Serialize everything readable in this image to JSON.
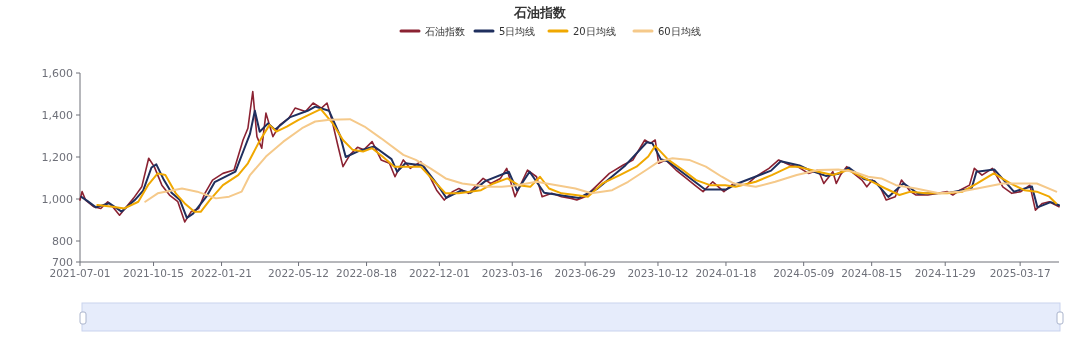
{
  "chart_data": {
    "type": "line",
    "title": "石油指数",
    "legend": "top",
    "grid": false,
    "marker": "none",
    "line_style": "solid",
    "xlim": [
      "2021-07-01",
      "2025-05-12"
    ],
    "xticks": [
      {
        "value": "2021-07-01",
        "label": "2021-07-01"
      },
      {
        "value": "2021-10-15",
        "label": "2021-10-15"
      },
      {
        "value": "2022-01-21",
        "label": "2022-01-21"
      },
      {
        "value": "2022-05-12",
        "label": "2022-05-12"
      },
      {
        "value": "2022-08-18",
        "label": "2022-08-18"
      },
      {
        "value": "2022-12-01",
        "label": "2022-12-01"
      },
      {
        "value": "2023-03-16",
        "label": "2023-03-16"
      },
      {
        "value": "2023-06-29",
        "label": "2023-06-29"
      },
      {
        "value": "2023-10-12",
        "label": "2023-10-12"
      },
      {
        "value": "2024-01-18",
        "label": "2024-01-18"
      },
      {
        "value": "2024-05-09",
        "label": "2024-05-09"
      },
      {
        "value": "2024-08-15",
        "label": "2024-08-15"
      },
      {
        "value": "2024-11-29",
        "label": "2024-11-29"
      },
      {
        "value": "2025-03-17",
        "label": "2025-03-17"
      }
    ],
    "ylim": [
      700,
      1600
    ],
    "yticks": [
      700,
      800,
      {
        "value": 1000,
        "label": "1,000"
      },
      {
        "value": 1200,
        "label": "1,200"
      },
      {
        "value": 1400,
        "label": "1,400"
      },
      {
        "value": 1600,
        "label": "1,600"
      }
    ],
    "series": [
      {
        "name": "石油指数",
        "color": "#8b2232",
        "x": [
          "2021-07-01",
          "2021-07-04",
          "2021-07-09",
          "2021-07-21",
          "2021-07-31",
          "2021-08-10",
          "2021-08-17",
          "2021-08-27",
          "2021-09-06",
          "2021-09-16",
          "2021-09-28",
          "2021-10-08",
          "2021-10-16",
          "2021-10-27",
          "2021-11-07",
          "2021-11-19",
          "2021-11-29",
          "2021-12-08",
          "2021-12-19",
          "2021-12-28",
          "2022-01-08",
          "2022-01-23",
          "2022-02-08",
          "2022-02-21",
          "2022-02-28",
          "2022-03-07",
          "2022-03-13",
          "2022-03-20",
          "2022-03-26",
          "2022-04-05",
          "2022-04-15",
          "2022-04-28",
          "2022-05-07",
          "2022-05-22",
          "2022-06-02",
          "2022-06-14",
          "2022-06-22",
          "2022-06-29",
          "2022-07-08",
          "2022-07-15",
          "2022-07-25",
          "2022-08-05",
          "2022-08-14",
          "2022-08-26",
          "2022-09-08",
          "2022-09-20",
          "2022-09-28",
          "2022-10-10",
          "2022-10-20",
          "2022-11-04",
          "2022-11-16",
          "2022-11-27",
          "2022-12-08",
          "2022-12-20",
          "2022-12-29",
          "2023-01-12",
          "2023-02-02",
          "2023-02-13",
          "2023-02-27",
          "2023-03-08",
          "2023-03-20",
          "2023-04-07",
          "2023-04-20",
          "2023-04-28",
          "2023-05-12",
          "2023-05-26",
          "2023-06-09",
          "2023-06-17",
          "2023-06-29",
          "2023-07-14",
          "2023-08-03",
          "2023-08-23",
          "2023-09-06",
          "2023-09-23",
          "2023-10-01",
          "2023-10-08",
          "2023-10-13",
          "2023-10-23",
          "2023-11-07",
          "2023-11-22",
          "2023-12-04",
          "2023-12-16",
          "2023-12-30",
          "2024-01-15",
          "2024-01-29",
          "2024-02-16",
          "2024-03-01",
          "2024-03-20",
          "2024-04-03",
          "2024-04-19",
          "2024-04-30",
          "2024-05-16",
          "2024-05-30",
          "2024-06-07",
          "2024-06-20",
          "2024-06-25",
          "2024-07-01",
          "2024-07-10",
          "2024-07-20",
          "2024-08-01",
          "2024-08-08",
          "2024-08-16",
          "2024-08-26",
          "2024-09-05",
          "2024-09-18",
          "2024-09-27",
          "2024-10-10",
          "2024-10-18",
          "2024-11-04",
          "2024-12-02",
          "2024-12-10",
          "2024-12-20",
          "2025-01-03",
          "2025-01-10",
          "2025-01-21",
          "2025-02-05",
          "2025-02-20",
          "2025-03-05",
          "2025-03-18",
          "2025-03-31",
          "2025-04-08",
          "2025-04-18",
          "2025-04-28",
          "2025-05-12"
        ],
        "values": [
          995,
          1035,
          995,
          963,
          955,
          987,
          963,
          923,
          963,
          1003,
          1058,
          1194,
          1154,
          1066,
          1019,
          987,
          891,
          939,
          955,
          1027,
          1090,
          1122,
          1138,
          1281,
          1337,
          1512,
          1297,
          1242,
          1409,
          1297,
          1353,
          1385,
          1433,
          1417,
          1457,
          1433,
          1457,
          1377,
          1250,
          1154,
          1210,
          1246,
          1234,
          1273,
          1186,
          1170,
          1106,
          1186,
          1146,
          1178,
          1114,
          1042,
          995,
          1035,
          1050,
          1027,
          1098,
          1074,
          1098,
          1146,
          1011,
          1138,
          1106,
          1011,
          1027,
          1011,
          1003,
          995,
          1011,
          1058,
          1122,
          1162,
          1186,
          1281,
          1265,
          1281,
          1170,
          1186,
          1138,
          1098,
          1066,
          1035,
          1082,
          1035,
          1074,
          1066,
          1106,
          1146,
          1186,
          1162,
          1154,
          1122,
          1138,
          1074,
          1130,
          1074,
          1114,
          1154,
          1122,
          1090,
          1058,
          1090,
          1066,
          995,
          1011,
          1090,
          1035,
          1019,
          1019,
          1035,
          1019,
          1042,
          1066,
          1146,
          1114,
          1146,
          1058,
          1027,
          1035,
          1066,
          947,
          979,
          987,
          963
        ]
      },
      {
        "name": "5日均线",
        "color": "#1f2f5e",
        "x": [
          "2021-07-03",
          "2021-07-12",
          "2021-07-24",
          "2021-08-12",
          "2021-08-30",
          "2021-09-18",
          "2021-09-30",
          "2021-10-12",
          "2021-10-19",
          "2021-10-30",
          "2021-11-10",
          "2021-11-22",
          "2021-12-02",
          "2021-12-11",
          "2021-12-31",
          "2022-01-11",
          "2022-02-10",
          "2022-02-24",
          "2022-03-03",
          "2022-03-10",
          "2022-03-17",
          "2022-03-29",
          "2022-04-08",
          "2022-04-30",
          "2022-05-25",
          "2022-06-05",
          "2022-06-25",
          "2022-07-11",
          "2022-07-19",
          "2022-08-08",
          "2022-08-29",
          "2022-09-23",
          "2022-10-01",
          "2022-10-13",
          "2022-11-07",
          "2022-11-30",
          "2022-12-11",
          "2023-01-01",
          "2023-01-15",
          "2023-02-05",
          "2023-03-11",
          "2023-03-23",
          "2023-04-10",
          "2023-05-01",
          "2023-05-29",
          "2023-06-20",
          "2023-07-17",
          "2023-08-26",
          "2023-09-26",
          "2023-10-04",
          "2023-10-16",
          "2023-10-26",
          "2023-11-25",
          "2023-12-19",
          "2024-01-18",
          "2024-02-01",
          "2024-03-23",
          "2024-04-06",
          "2024-05-03",
          "2024-05-19",
          "2024-06-10",
          "2024-06-28",
          "2024-07-13",
          "2024-08-04",
          "2024-08-19",
          "2024-09-08",
          "2024-09-30",
          "2024-10-21",
          "2024-12-05",
          "2025-01-06",
          "2025-01-13",
          "2025-02-08",
          "2025-03-08",
          "2025-04-03",
          "2025-04-11",
          "2025-04-30",
          "2025-05-12"
        ],
        "values": [
          1010,
          990,
          960,
          980,
          940,
          995,
          1040,
          1150,
          1165,
          1090,
          1030,
          995,
          910,
          930,
          1015,
          1080,
          1130,
          1250,
          1310,
          1420,
          1320,
          1360,
          1330,
          1390,
          1420,
          1440,
          1420,
          1300,
          1200,
          1230,
          1250,
          1190,
          1130,
          1170,
          1160,
          1060,
          1005,
          1040,
          1030,
          1085,
          1130,
          1040,
          1130,
          1030,
          1015,
          1005,
          1050,
          1160,
          1270,
          1265,
          1190,
          1180,
          1105,
          1045,
          1045,
          1070,
          1135,
          1180,
          1160,
          1135,
          1110,
          1120,
          1150,
          1095,
          1085,
          1010,
          1075,
          1025,
          1030,
          1050,
          1130,
          1140,
          1035,
          1060,
          960,
          985,
          970
        ]
      },
      {
        "name": "20日均线",
        "color": "#f0a800",
        "x": [
          "2021-07-26",
          "2021-08-17",
          "2021-09-03",
          "2021-09-23",
          "2021-10-07",
          "2021-10-21",
          "2021-11-01",
          "2021-11-16",
          "2021-11-29",
          "2021-12-13",
          "2021-12-22",
          "2022-01-04",
          "2022-01-23",
          "2022-02-14",
          "2022-02-28",
          "2022-03-15",
          "2022-03-31",
          "2022-04-10",
          "2022-04-25",
          "2022-05-12",
          "2022-06-01",
          "2022-06-13",
          "2022-06-30",
          "2022-07-15",
          "2022-07-29",
          "2022-08-13",
          "2022-08-26",
          "2022-09-10",
          "2022-09-27",
          "2022-10-20",
          "2022-11-04",
          "2022-11-22",
          "2022-12-10",
          "2022-12-29",
          "2023-01-30",
          "2023-02-17",
          "2023-03-09",
          "2023-03-25",
          "2023-04-11",
          "2023-04-25",
          "2023-05-08",
          "2023-05-26",
          "2023-06-15",
          "2023-07-03",
          "2023-07-24",
          "2023-08-18",
          "2023-09-11",
          "2023-09-28",
          "2023-10-08",
          "2023-10-27",
          "2023-11-17",
          "2023-12-06",
          "2023-12-26",
          "2024-01-17",
          "2024-02-01",
          "2024-03-01",
          "2024-03-24",
          "2024-04-19",
          "2024-05-01",
          "2024-05-30",
          "2024-06-20",
          "2024-07-12",
          "2024-07-27",
          "2024-08-16",
          "2024-09-04",
          "2024-09-24",
          "2024-10-10",
          "2024-11-01",
          "2024-12-02",
          "2024-12-24",
          "2025-01-14",
          "2025-02-07",
          "2025-03-03",
          "2025-03-23",
          "2025-04-10",
          "2025-04-28",
          "2025-05-08"
        ],
        "values": [
          971,
          963,
          955,
          987,
          1066,
          1122,
          1114,
          1027,
          979,
          939,
          939,
          995,
          1066,
          1114,
          1170,
          1265,
          1353,
          1321,
          1345,
          1377,
          1409,
          1428,
          1361,
          1281,
          1234,
          1226,
          1242,
          1202,
          1154,
          1154,
          1154,
          1090,
          1027,
          1027,
          1042,
          1074,
          1098,
          1066,
          1058,
          1106,
          1050,
          1027,
          1019,
          1011,
          1074,
          1114,
          1154,
          1202,
          1253,
          1186,
          1138,
          1090,
          1066,
          1066,
          1058,
          1082,
          1114,
          1154,
          1154,
          1130,
          1114,
          1138,
          1114,
          1082,
          1050,
          1019,
          1035,
          1027,
          1027,
          1035,
          1074,
          1122,
          1074,
          1042,
          1035,
          1011,
          979
        ]
      },
      {
        "name": "60日均线",
        "color": "#f5c98a",
        "x": [
          "2021-10-03",
          "2021-10-21",
          "2021-11-12",
          "2021-11-25",
          "2021-12-17",
          "2022-01-13",
          "2022-02-01",
          "2022-02-19",
          "2022-03-03",
          "2022-03-26",
          "2022-04-20",
          "2022-05-17",
          "2022-06-05",
          "2022-06-26",
          "2022-07-25",
          "2022-08-15",
          "2022-09-08",
          "2022-10-10",
          "2022-10-28",
          "2022-11-18",
          "2022-12-10",
          "2023-01-03",
          "2023-02-08",
          "2023-03-01",
          "2023-03-23",
          "2023-04-20",
          "2023-05-19",
          "2023-06-15",
          "2023-07-08",
          "2023-08-07",
          "2023-08-30",
          "2023-09-25",
          "2023-10-13",
          "2023-11-02",
          "2023-11-26",
          "2023-12-20",
          "2024-01-12",
          "2024-01-29",
          "2024-03-01",
          "2024-03-29",
          "2024-04-29",
          "2024-05-30",
          "2024-06-28",
          "2024-07-20",
          "2024-08-10",
          "2024-08-29",
          "2024-09-19",
          "2024-10-18",
          "2024-11-20",
          "2024-12-20",
          "2025-01-14",
          "2025-02-20",
          "2025-03-23",
          "2025-04-10",
          "2025-05-08"
        ],
        "values": [
          987,
          1027,
          1042,
          1050,
          1035,
          1003,
          1011,
          1035,
          1114,
          1202,
          1273,
          1337,
          1369,
          1377,
          1380,
          1345,
          1289,
          1210,
          1186,
          1146,
          1098,
          1074,
          1058,
          1058,
          1066,
          1082,
          1066,
          1050,
          1027,
          1042,
          1082,
          1138,
          1178,
          1194,
          1186,
          1154,
          1106,
          1074,
          1058,
          1082,
          1114,
          1138,
          1141,
          1130,
          1106,
          1098,
          1066,
          1050,
          1027,
          1035,
          1050,
          1074,
          1074,
          1074,
          1035
        ]
      }
    ]
  }
}
